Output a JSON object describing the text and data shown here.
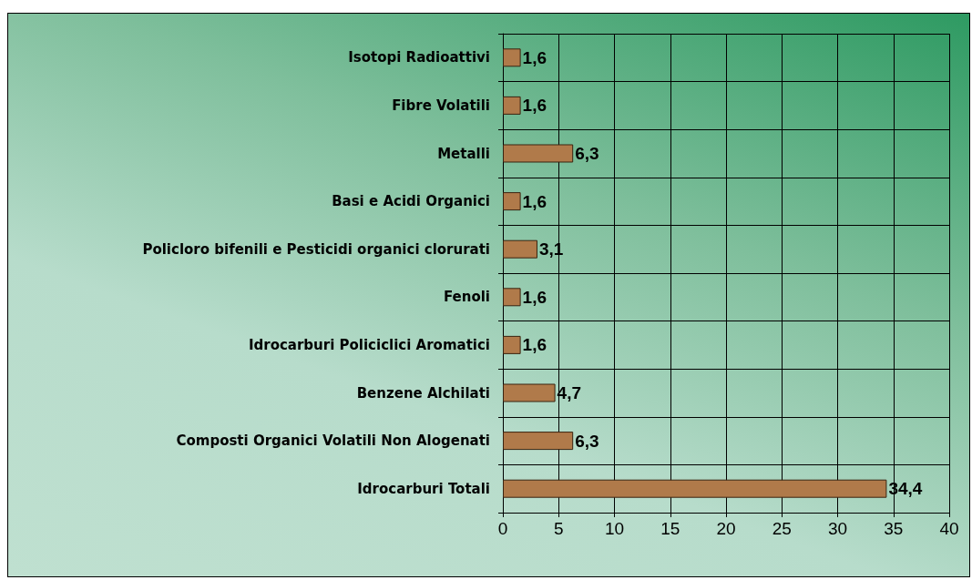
{
  "chart_data": {
    "type": "bar",
    "orientation": "horizontal",
    "categories": [
      "Isotopi Radioattivi",
      "Fibre Volatili",
      "Metalli",
      "Basi e Acidi Organici",
      "Policloro bifenili e Pesticidi organici clorurati",
      "Fenoli",
      "Idrocarburi Policiclici Aromatici",
      "Benzene Alchilati",
      "Composti Organici Volatili Non Alogenati",
      "Idrocarburi Totali"
    ],
    "values": [
      1.6,
      1.6,
      6.3,
      1.6,
      3.1,
      1.6,
      1.6,
      4.7,
      6.3,
      34.4
    ],
    "value_labels": [
      "1,6",
      "1,6",
      "6,3",
      "1,6",
      "3,1",
      "1,6",
      "1,6",
      "4,7",
      "6,3",
      "34,4"
    ],
    "color": "#b07a4a",
    "xlim": [
      0,
      40
    ],
    "xticks": [
      0,
      5,
      10,
      15,
      20,
      25,
      30,
      35,
      40
    ],
    "grid": true
  }
}
